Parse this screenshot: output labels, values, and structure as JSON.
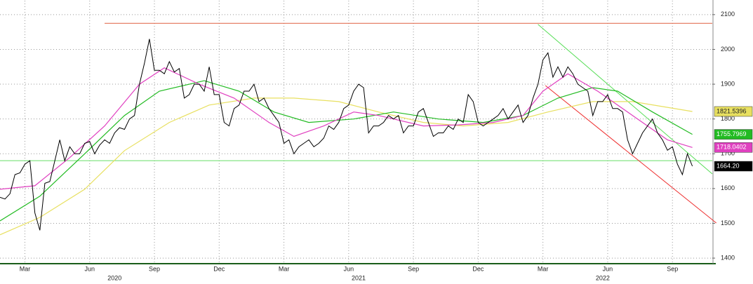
{
  "chart_data": {
    "type": "line",
    "xlim": [
      0,
      143
    ],
    "ylim": [
      1380,
      2140
    ],
    "yticks": [
      1400,
      1500,
      1600,
      1700,
      1800,
      1900,
      2000,
      2100
    ],
    "xticks": [
      {
        "value": 5,
        "label": "Mar"
      },
      {
        "value": 18,
        "label": "Jun"
      },
      {
        "value": 31,
        "label": "Sep"
      },
      {
        "value": 44,
        "label": "Dec"
      },
      {
        "value": 57,
        "label": "Mar"
      },
      {
        "value": 70,
        "label": "Jun"
      },
      {
        "value": 83,
        "label": "Sep"
      },
      {
        "value": 96,
        "label": "Dec"
      },
      {
        "value": 109,
        "label": "Mar"
      },
      {
        "value": 122,
        "label": "Jun"
      },
      {
        "value": 135,
        "label": "Sep"
      }
    ],
    "year_ticks": [
      {
        "value": 23,
        "label": "2020"
      },
      {
        "value": 72,
        "label": "2021"
      },
      {
        "value": 121,
        "label": "2022"
      }
    ],
    "grid": true,
    "series": [
      {
        "color": "#000000",
        "last_value": {
          "value": 1664.2,
          "label": "1664.20"
        },
        "x": [
          0,
          1,
          2,
          3,
          4,
          5,
          6,
          7,
          8,
          9,
          10,
          11,
          12,
          13,
          14,
          15,
          16,
          17,
          18,
          19,
          20,
          21,
          22,
          23,
          24,
          25,
          26,
          27,
          28,
          29,
          30,
          31,
          32,
          33,
          34,
          35,
          36,
          37,
          38,
          39,
          40,
          41,
          42,
          43,
          44,
          45,
          46,
          47,
          48,
          49,
          50,
          51,
          52,
          53,
          54,
          55,
          56,
          57,
          58,
          59,
          60,
          61,
          62,
          63,
          64,
          65,
          66,
          67,
          68,
          69,
          70,
          71,
          72,
          73,
          74,
          75,
          76,
          77,
          78,
          79,
          80,
          81,
          82,
          83,
          84,
          85,
          86,
          87,
          88,
          89,
          90,
          91,
          92,
          93,
          94,
          95,
          96,
          97,
          98,
          99,
          100,
          101,
          102,
          103,
          104,
          105,
          106,
          107,
          108,
          109,
          110,
          111,
          112,
          113,
          114,
          115,
          116,
          117,
          118,
          119,
          120,
          121,
          122,
          123,
          124,
          125,
          126,
          127,
          128,
          129,
          130,
          131,
          132,
          133,
          134,
          135,
          136,
          137,
          138,
          139
        ],
        "values": [
          1575,
          1570,
          1585,
          1640,
          1645,
          1670,
          1680,
          1530,
          1480,
          1615,
          1620,
          1680,
          1740,
          1680,
          1720,
          1700,
          1700,
          1730,
          1735,
          1700,
          1725,
          1740,
          1730,
          1760,
          1775,
          1770,
          1800,
          1810,
          1900,
          1960,
          2030,
          1940,
          1940,
          1930,
          1965,
          1935,
          1945,
          1860,
          1870,
          1900,
          1900,
          1880,
          1950,
          1870,
          1870,
          1790,
          1780,
          1830,
          1840,
          1880,
          1880,
          1900,
          1850,
          1860,
          1830,
          1810,
          1790,
          1730,
          1740,
          1700,
          1720,
          1730,
          1740,
          1720,
          1730,
          1745,
          1780,
          1770,
          1790,
          1830,
          1840,
          1880,
          1900,
          1890,
          1760,
          1780,
          1780,
          1790,
          1810,
          1800,
          1810,
          1760,
          1780,
          1780,
          1820,
          1830,
          1790,
          1750,
          1760,
          1760,
          1780,
          1770,
          1800,
          1790,
          1870,
          1850,
          1790,
          1780,
          1790,
          1800,
          1810,
          1830,
          1800,
          1820,
          1840,
          1790,
          1810,
          1860,
          1900,
          1970,
          1990,
          1920,
          1950,
          1920,
          1950,
          1930,
          1900,
          1890,
          1880,
          1810,
          1850,
          1850,
          1870,
          1830,
          1830,
          1820,
          1740,
          1700,
          1730,
          1760,
          1780,
          1800,
          1760,
          1740,
          1710,
          1720,
          1670,
          1640,
          1700,
          1664.2
        ]
      },
      {
        "color": "#e040c0",
        "last_value": 1718.0402,
        "x": [
          0,
          7,
          14,
          21,
          28,
          33,
          40,
          47,
          54,
          59,
          65,
          71,
          76,
          85,
          92,
          99,
          105,
          109,
          114,
          120,
          127,
          134,
          139
        ],
        "values": [
          1598,
          1608,
          1689,
          1780,
          1900,
          1947,
          1900,
          1860,
          1790,
          1750,
          1780,
          1820,
          1810,
          1780,
          1783,
          1790,
          1810,
          1880,
          1930,
          1880,
          1810,
          1740,
          1718.0402
        ]
      },
      {
        "color": "#22bb22",
        "last_value": 1755.7969,
        "x": [
          0,
          8,
          17,
          25,
          32,
          41,
          48,
          55,
          62,
          71,
          79,
          88,
          97,
          105,
          112,
          119,
          124,
          131,
          139
        ],
        "values": [
          1507,
          1578,
          1700,
          1810,
          1880,
          1910,
          1880,
          1820,
          1790,
          1800,
          1820,
          1800,
          1790,
          1810,
          1860,
          1890,
          1880,
          1820,
          1755.7969
        ]
      },
      {
        "color": "#e8e060",
        "last_value": 1821.5396,
        "x": [
          0,
          8,
          17,
          25,
          34,
          42,
          51,
          59,
          68,
          76,
          85,
          93,
          102,
          110,
          119,
          127,
          139
        ],
        "values": [
          1467,
          1517,
          1598,
          1709,
          1790,
          1840,
          1860,
          1860,
          1850,
          1820,
          1790,
          1780,
          1790,
          1820,
          1850,
          1850,
          1821.5396
        ]
      }
    ],
    "lines": [
      {
        "color": "#e06040",
        "x": [
          21,
          143
        ],
        "y": [
          2075,
          2075
        ]
      },
      {
        "color": "#66dd66",
        "x": [
          0,
          143
        ],
        "y": [
          1680,
          1680
        ]
      },
      {
        "color": "#55dd55",
        "x": [
          108,
          143
        ],
        "y": [
          2072,
          1642
        ]
      },
      {
        "color": "#ee3030",
        "x": [
          109.5,
          143.8
        ],
        "y": [
          1896,
          1501
        ]
      }
    ]
  }
}
